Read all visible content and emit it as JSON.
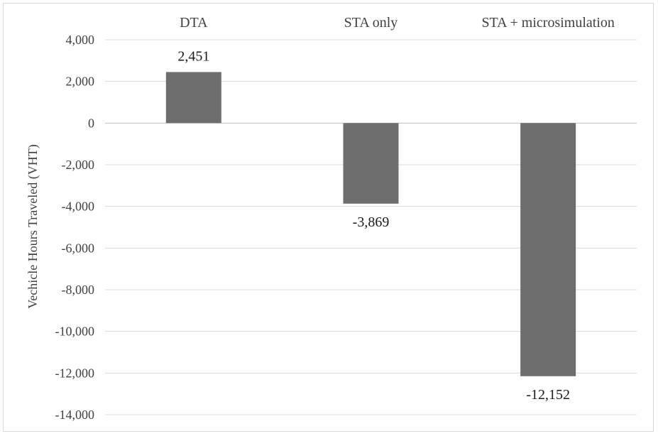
{
  "chart_data": {
    "type": "bar",
    "categories": [
      "DTA",
      "STA only",
      "STA + microsimulation"
    ],
    "values": [
      2451,
      -3869,
      -12152
    ],
    "data_labels": [
      "2,451",
      "-3,869",
      "-12,152"
    ],
    "title": "",
    "xlabel": "",
    "ylabel": "Vechicle Hours Traveled (VHT)",
    "ylim": [
      -14000,
      4000
    ],
    "yticks": [
      4000,
      2000,
      0,
      -2000,
      -4000,
      -6000,
      -8000,
      -10000,
      -12000,
      -14000
    ],
    "ytick_labels": [
      "4,000",
      "2,000",
      "0",
      "-2,000",
      "-4,000",
      "-6,000",
      "-8,000",
      "-10,000",
      "-12,000",
      "-14,000"
    ],
    "category_labels_position": "top",
    "grid": true,
    "legend": "none",
    "colors": {
      "bar": "#6e6e6e",
      "grid": "#d9d9d9",
      "text": "#404040"
    }
  }
}
